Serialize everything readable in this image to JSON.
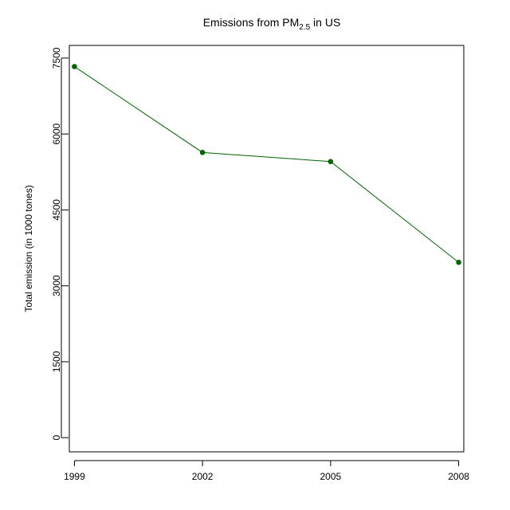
{
  "chart_data": {
    "type": "line",
    "title": "Emissions from PM",
    "title_subscript": "2.5",
    "title_suffix": " in US",
    "xlabel": "",
    "ylabel": "Total emission (in 1000 tones)",
    "x": [
      1999,
      2002,
      2005,
      2008
    ],
    "x_tick_labels": [
      "1999",
      "2002",
      "2005",
      "2008"
    ],
    "y_ticks": [
      0,
      1500,
      3000,
      4500,
      6000,
      7500
    ],
    "y_tick_labels": [
      "0",
      "1500",
      "3000",
      "4500",
      "6000",
      "7500"
    ],
    "ylim": [
      -280,
      7750
    ],
    "xlim": [
      1998.88,
      2008.12
    ],
    "series": [
      {
        "values": [
          7332,
          5635,
          5455,
          3464
        ],
        "color": "#006400"
      }
    ],
    "grid": false,
    "legend": "none"
  }
}
